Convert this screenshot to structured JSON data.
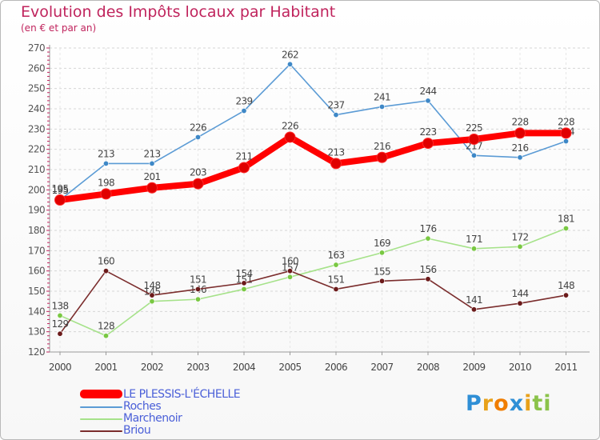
{
  "header": {
    "title": "Evolution des Impôts locaux par Habitant",
    "subtitle": "(en € et par an)"
  },
  "brand": {
    "letters": [
      "P",
      "r",
      "o",
      "x",
      "i",
      "ti"
    ]
  },
  "chart_data": {
    "type": "line",
    "title": "Evolution des Impôts locaux par Habitant",
    "subtitle": "(en € et par an)",
    "xlabel": "",
    "ylabel": "",
    "ylim": [
      120,
      270
    ],
    "yticks": [
      120,
      130,
      140,
      150,
      160,
      170,
      180,
      190,
      200,
      210,
      220,
      230,
      240,
      250,
      260,
      270
    ],
    "categories": [
      "2000",
      "2001",
      "2002",
      "2003",
      "2004",
      "2005",
      "2006",
      "2007",
      "2008",
      "2009",
      "2010",
      "2011"
    ],
    "grid": "horizontal dashed",
    "legend_position": "bottom-left",
    "series": [
      {
        "name": "Roches",
        "color": "#5b9bd5",
        "point": "#3e88c7",
        "values": [
          195,
          213,
          213,
          226,
          239,
          262,
          237,
          241,
          244,
          217,
          216,
          224
        ]
      },
      {
        "name": "Marchenoir",
        "color": "#a6e28a",
        "point": "#79c842",
        "values": [
          138,
          128,
          145,
          146,
          151,
          157,
          163,
          169,
          176,
          171,
          172,
          181
        ]
      },
      {
        "name": "Briou",
        "color": "#7b2d2d",
        "point": "#6b1a1a",
        "values": [
          129,
          160,
          148,
          151,
          154,
          160,
          151,
          155,
          156,
          141,
          144,
          148
        ]
      },
      {
        "name": "LE PLESSIS-L'ÉCHELLE",
        "color": "#ff0000",
        "point": "#e00000",
        "values": [
          195,
          198,
          201,
          203,
          211,
          226,
          213,
          216,
          223,
          225,
          228,
          228
        ]
      }
    ]
  },
  "legend": {
    "items": [
      {
        "label": "LE PLESSIS-L'ÉCHELLE",
        "color": "#ff0000"
      },
      {
        "label": "Roches",
        "color": "#5b9bd5"
      },
      {
        "label": "Marchenoir",
        "color": "#a6e28a"
      },
      {
        "label": "Briou",
        "color": "#7b2d2d"
      }
    ]
  }
}
